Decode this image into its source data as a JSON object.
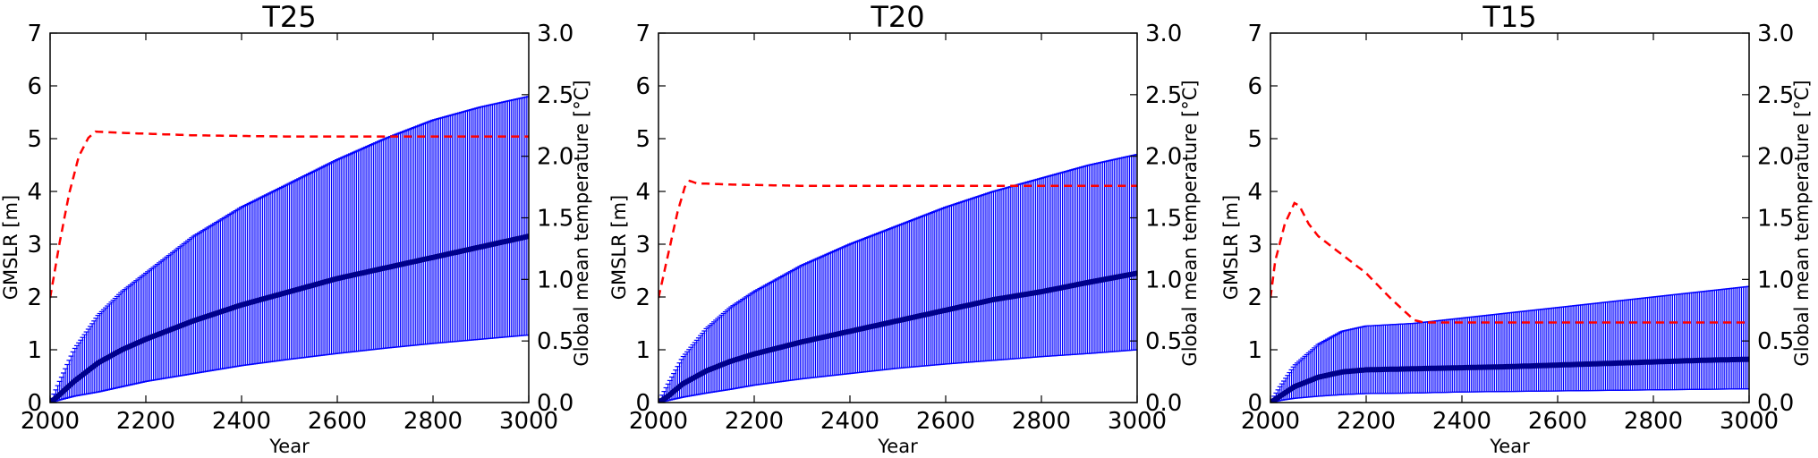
{
  "chart_data": [
    {
      "type": "line",
      "title": "T25",
      "xlabel": "Year",
      "ylabel": "GMSLR [m]",
      "y2label": "Global mean temperature [°C]",
      "xlim": [
        2000,
        3000
      ],
      "ylim": [
        0,
        7
      ],
      "y2lim": [
        0.0,
        3.0
      ],
      "xticks": [
        "2000",
        "2200",
        "2400",
        "2600",
        "2800",
        "3000"
      ],
      "yticks": [
        "0",
        "1",
        "2",
        "3",
        "4",
        "5",
        "6",
        "7"
      ],
      "y2ticks": [
        "0.0",
        "0.5",
        "1.0",
        "1.5",
        "2.0",
        "2.5",
        "3.0"
      ],
      "series": [
        {
          "axis": "left",
          "style": "line-with-error-bars",
          "color": "#00008b",
          "bar_color": "#0000ff",
          "x": [
            2000,
            2020,
            2050,
            2100,
            2150,
            2200,
            2300,
            2400,
            2500,
            2600,
            2700,
            2800,
            2900,
            3000
          ],
          "values": [
            0.0,
            0.15,
            0.4,
            0.75,
            1.0,
            1.2,
            1.55,
            1.85,
            2.1,
            2.35,
            2.55,
            2.75,
            2.95,
            3.15
          ],
          "lower": [
            0.0,
            0.05,
            0.12,
            0.2,
            0.3,
            0.4,
            0.55,
            0.7,
            0.82,
            0.93,
            1.03,
            1.12,
            1.2,
            1.28
          ],
          "upper": [
            0.0,
            0.4,
            1.0,
            1.65,
            2.1,
            2.45,
            3.15,
            3.7,
            4.15,
            4.6,
            5.0,
            5.35,
            5.6,
            5.8
          ]
        },
        {
          "axis": "right",
          "style": "dashed",
          "color": "#ff0000",
          "x": [
            2000,
            2020,
            2040,
            2060,
            2080,
            2095,
            2150,
            2300,
            2500,
            3000
          ],
          "values": [
            0.85,
            1.3,
            1.7,
            2.0,
            2.15,
            2.2,
            2.19,
            2.17,
            2.16,
            2.16
          ]
        }
      ]
    },
    {
      "type": "line",
      "title": "T20",
      "xlabel": "Year",
      "ylabel": "GMSLR [m]",
      "y2label": "Global mean temperature [°C]",
      "xlim": [
        2000,
        3000
      ],
      "ylim": [
        0,
        7
      ],
      "y2lim": [
        0.0,
        3.0
      ],
      "xticks": [
        "2000",
        "2200",
        "2400",
        "2600",
        "2800",
        "3000"
      ],
      "yticks": [
        "0",
        "1",
        "2",
        "3",
        "4",
        "5",
        "6",
        "7"
      ],
      "y2ticks": [
        "0.0",
        "0.5",
        "1.0",
        "1.5",
        "2.0",
        "2.5",
        "3.0"
      ],
      "series": [
        {
          "axis": "left",
          "style": "line-with-error-bars",
          "color": "#00008b",
          "bar_color": "#0000ff",
          "x": [
            2000,
            2020,
            2050,
            2100,
            2150,
            2200,
            2300,
            2400,
            2500,
            2600,
            2700,
            2800,
            2900,
            3000
          ],
          "values": [
            0.0,
            0.12,
            0.35,
            0.6,
            0.78,
            0.92,
            1.15,
            1.35,
            1.55,
            1.75,
            1.95,
            2.1,
            2.28,
            2.45
          ],
          "lower": [
            0.0,
            0.04,
            0.1,
            0.18,
            0.25,
            0.33,
            0.45,
            0.55,
            0.65,
            0.73,
            0.8,
            0.87,
            0.93,
            1.0
          ],
          "upper": [
            0.0,
            0.35,
            0.85,
            1.4,
            1.8,
            2.1,
            2.6,
            3.0,
            3.35,
            3.7,
            4.0,
            4.25,
            4.5,
            4.7
          ]
        },
        {
          "axis": "right",
          "style": "dashed",
          "color": "#ff0000",
          "x": [
            2000,
            2020,
            2040,
            2055,
            2065,
            2080,
            2150,
            2300,
            2500,
            3000
          ],
          "values": [
            0.85,
            1.2,
            1.55,
            1.75,
            1.8,
            1.78,
            1.77,
            1.76,
            1.76,
            1.76
          ]
        }
      ]
    },
    {
      "type": "line",
      "title": "T15",
      "xlabel": "Year",
      "ylabel": "GMSLR [m]",
      "y2label": "Global mean temperature [°C]",
      "xlim": [
        2000,
        3000
      ],
      "ylim": [
        0,
        7
      ],
      "y2lim": [
        0.0,
        3.0
      ],
      "xticks": [
        "2000",
        "2200",
        "2400",
        "2600",
        "2800",
        "3000"
      ],
      "yticks": [
        "0",
        "1",
        "2",
        "3",
        "4",
        "5",
        "6",
        "7"
      ],
      "y2ticks": [
        "0.0",
        "0.5",
        "1.0",
        "1.5",
        "2.0",
        "2.5",
        "3.0"
      ],
      "series": [
        {
          "axis": "left",
          "style": "line-with-error-bars",
          "color": "#00008b",
          "bar_color": "#0000ff",
          "x": [
            2000,
            2020,
            2050,
            2100,
            2150,
            2200,
            2300,
            2400,
            2500,
            2600,
            2700,
            2800,
            2900,
            3000
          ],
          "values": [
            0.0,
            0.12,
            0.3,
            0.48,
            0.58,
            0.62,
            0.64,
            0.66,
            0.68,
            0.71,
            0.74,
            0.77,
            0.8,
            0.82
          ],
          "lower": [
            0.0,
            0.04,
            0.08,
            0.12,
            0.15,
            0.17,
            0.18,
            0.2,
            0.21,
            0.22,
            0.23,
            0.24,
            0.25,
            0.26
          ],
          "upper": [
            0.0,
            0.3,
            0.7,
            1.1,
            1.35,
            1.45,
            1.5,
            1.6,
            1.7,
            1.8,
            1.9,
            2.0,
            2.1,
            2.2
          ]
        },
        {
          "axis": "right",
          "style": "dashed",
          "color": "#ff0000",
          "x": [
            2000,
            2010,
            2030,
            2050,
            2060,
            2080,
            2100,
            2150,
            2200,
            2250,
            2300,
            2320,
            2400,
            2500,
            3000
          ],
          "values": [
            0.85,
            1.15,
            1.45,
            1.62,
            1.6,
            1.45,
            1.35,
            1.2,
            1.05,
            0.85,
            0.67,
            0.65,
            0.65,
            0.65,
            0.65
          ]
        }
      ]
    }
  ]
}
